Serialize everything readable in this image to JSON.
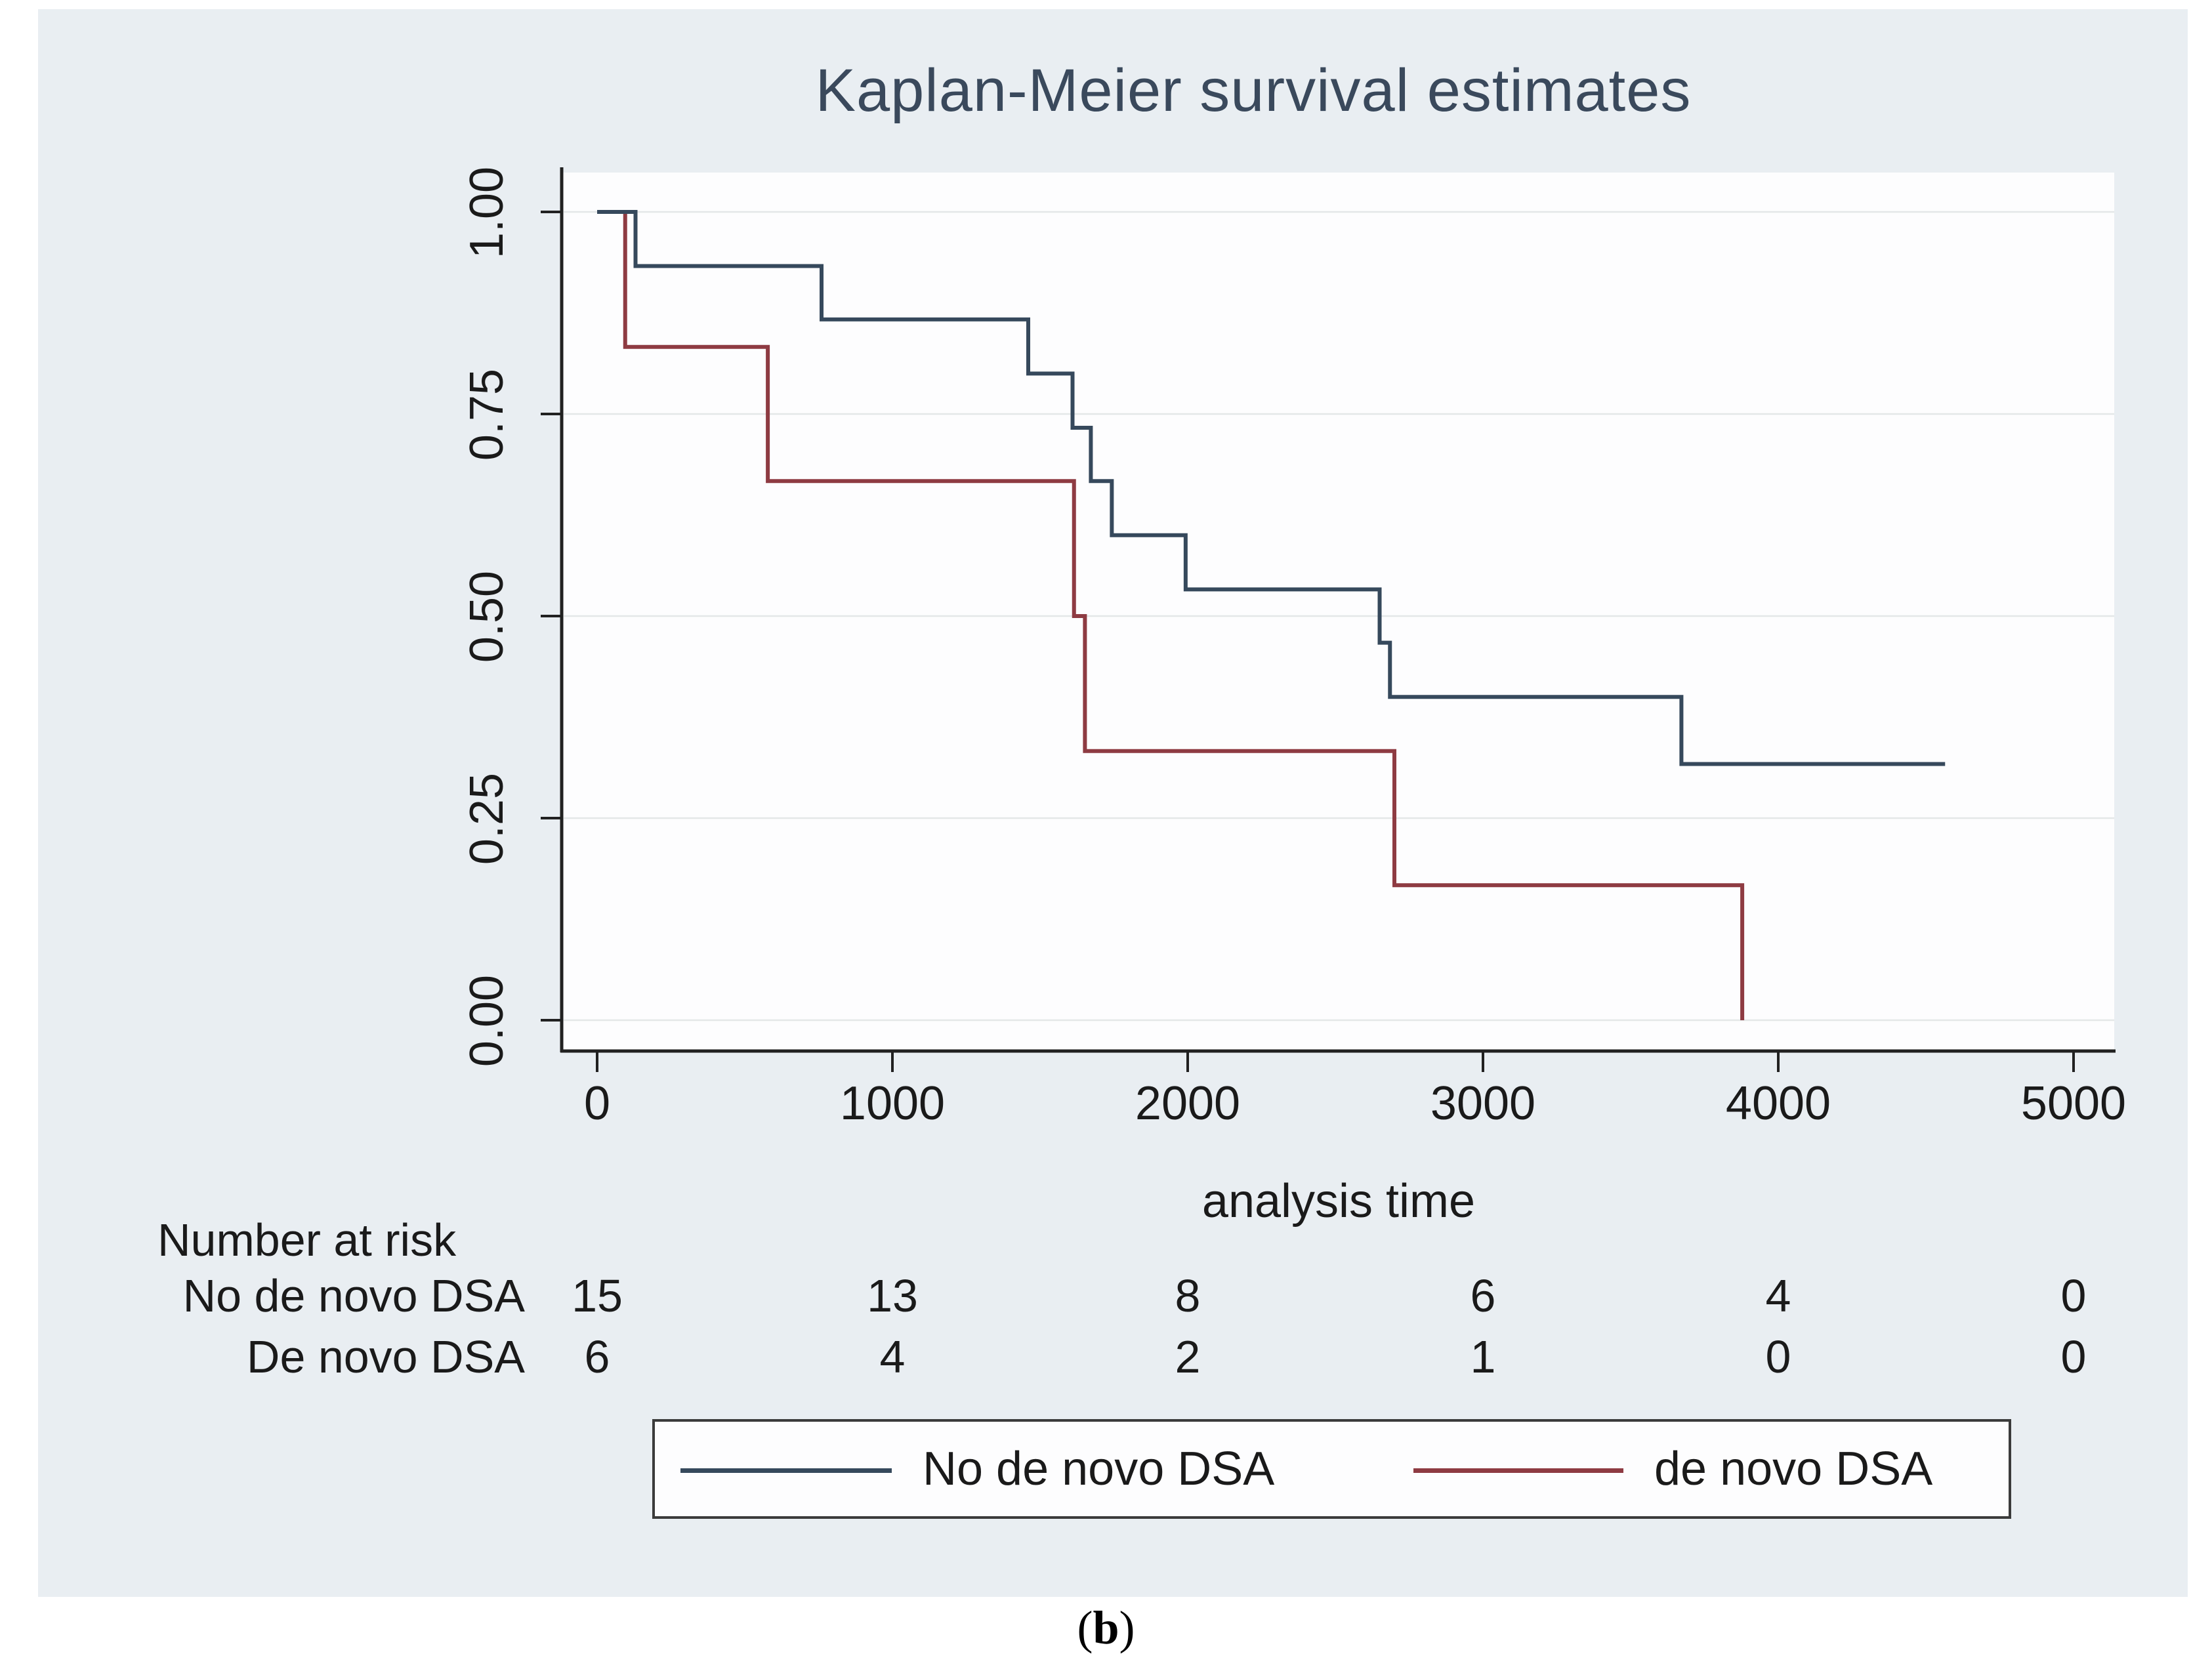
{
  "title": "Kaplan-Meier survival estimates",
  "colors": {
    "panel_background": "#e9eef2",
    "plot_background": "#fdfdfe",
    "gridline": "#e4e7e8",
    "axis": "#212121",
    "title_text": "#3a495c",
    "body_text": "#1a1a1a",
    "series_no_dsa": "#36495c",
    "series_dsa": "#8e3b42"
  },
  "chart_data": {
    "type": "line",
    "subtype": "kaplan-meier-step",
    "title": "Kaplan-Meier survival estimates",
    "xlabel": "analysis time",
    "ylabel": "",
    "xlim": [
      0,
      5130
    ],
    "ylim": [
      0.0,
      1.0
    ],
    "x_ticks": [
      "0",
      "1000",
      "2000",
      "3000",
      "4000",
      "5000"
    ],
    "x_tick_values": [
      0,
      1000,
      2000,
      3000,
      4000,
      5000
    ],
    "y_ticks": [
      "0.00",
      "0.25",
      "0.50",
      "0.75",
      "1.00"
    ],
    "y_tick_values": [
      0.0,
      0.25,
      0.5,
      0.75,
      1.0
    ],
    "grid": "horizontal gridlines at y ticks, on",
    "legend_position": "bottom, boxed, horizontal",
    "series": [
      {
        "name": "No de novo DSA",
        "color": "#36495c",
        "points": [
          [
            0,
            1.0
          ],
          [
            130,
            1.0
          ],
          [
            130,
            0.933
          ],
          [
            760,
            0.933
          ],
          [
            760,
            0.867
          ],
          [
            1460,
            0.867
          ],
          [
            1460,
            0.8
          ],
          [
            1610,
            0.8
          ],
          [
            1610,
            0.733
          ],
          [
            1672,
            0.733
          ],
          [
            1672,
            0.667
          ],
          [
            1743,
            0.667
          ],
          [
            1743,
            0.6
          ],
          [
            1993,
            0.6
          ],
          [
            1993,
            0.533
          ],
          [
            2650,
            0.533
          ],
          [
            2650,
            0.467
          ],
          [
            2685,
            0.467
          ],
          [
            2685,
            0.4
          ],
          [
            3672,
            0.4
          ],
          [
            3672,
            0.317
          ],
          [
            4565,
            0.317
          ]
        ]
      },
      {
        "name": "de novo DSA",
        "color": "#8e3b42",
        "points": [
          [
            0,
            1.0
          ],
          [
            95,
            1.0
          ],
          [
            95,
            0.833
          ],
          [
            578,
            0.833
          ],
          [
            578,
            0.667
          ],
          [
            1615,
            0.667
          ],
          [
            1615,
            0.5
          ],
          [
            1652,
            0.5
          ],
          [
            1652,
            0.333
          ],
          [
            2700,
            0.333
          ],
          [
            2700,
            0.167
          ],
          [
            3878,
            0.167
          ],
          [
            3878,
            0.0
          ]
        ]
      }
    ]
  },
  "risk_table": {
    "heading": "Number at risk",
    "time_points": [
      0,
      1000,
      2000,
      3000,
      4000,
      5000
    ],
    "rows": [
      {
        "label": "No de novo DSA",
        "values": [
          "15",
          "13",
          "8",
          "6",
          "4",
          "0"
        ]
      },
      {
        "label": "De novo DSA",
        "values": [
          "6",
          "4",
          "2",
          "1",
          "0",
          "0"
        ]
      }
    ]
  },
  "legend": {
    "items": [
      {
        "label": "No de novo DSA",
        "color": "#36495c"
      },
      {
        "label": "de novo DSA",
        "color": "#8e3b42"
      }
    ]
  },
  "caption": {
    "open": "(",
    "letter": "b",
    "close": ")"
  }
}
